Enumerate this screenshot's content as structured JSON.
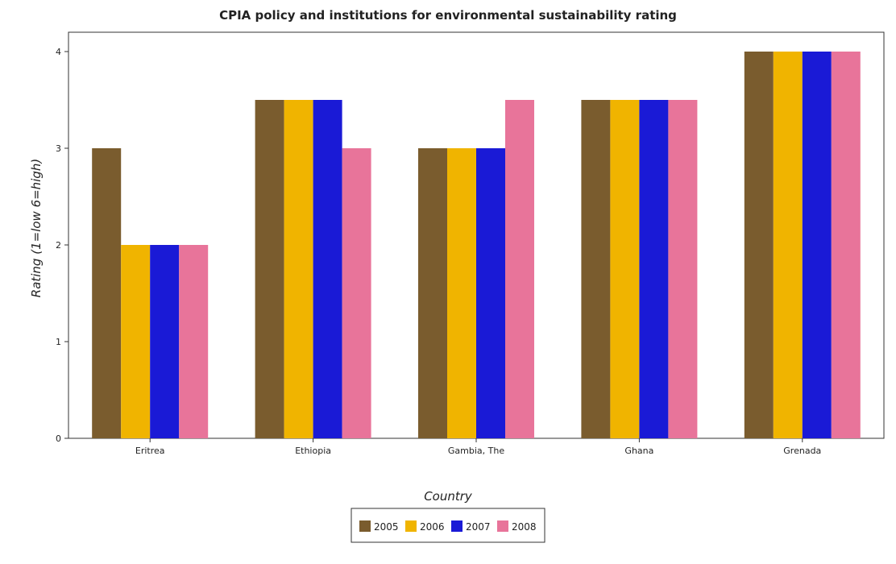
{
  "chart_data": {
    "type": "bar",
    "title": "CPIA policy and institutions for environmental sustainability rating",
    "xlabel": "Country",
    "ylabel": "Rating (1=low 6=high)",
    "categories": [
      "Eritrea",
      "Ethiopia",
      "Gambia, The",
      "Ghana",
      "Grenada"
    ],
    "series": [
      {
        "name": "2005",
        "color": "#7a5c2e",
        "values": [
          3.0,
          3.5,
          3.0,
          3.5,
          4.0
        ]
      },
      {
        "name": "2006",
        "color": "#f0b400",
        "values": [
          2.0,
          3.5,
          3.0,
          3.5,
          4.0
        ]
      },
      {
        "name": "2007",
        "color": "#1a1ad6",
        "values": [
          2.0,
          3.5,
          3.0,
          3.5,
          4.0
        ]
      },
      {
        "name": "2008",
        "color": "#e8749a",
        "values": [
          2.0,
          3.0,
          3.5,
          3.5,
          4.0
        ]
      }
    ],
    "yticks": [
      0,
      1,
      2,
      3,
      4
    ],
    "ylim": [
      0,
      4.2
    ],
    "grid": false,
    "legend_position": "bottom-center"
  }
}
